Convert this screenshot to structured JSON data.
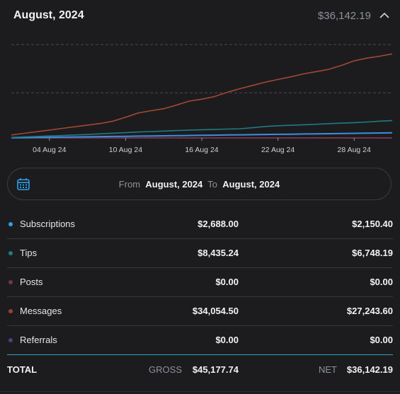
{
  "header": {
    "title": "August, 2024",
    "total": "$36,142.19"
  },
  "range": {
    "from_label": "From",
    "from_value": "August, 2024",
    "to_label": "To",
    "to_value": "August, 2024"
  },
  "rows": [
    {
      "label": "Subscriptions",
      "gross": "$2,688.00",
      "net": "$2,150.40",
      "color": "#2aa3e8"
    },
    {
      "label": "Tips",
      "gross": "$8,435.24",
      "net": "$6,748.19",
      "color": "#1f7c82"
    },
    {
      "label": "Posts",
      "gross": "$0.00",
      "net": "$0.00",
      "color": "#7a3346"
    },
    {
      "label": "Messages",
      "gross": "$34,054.50",
      "net": "$27,243.60",
      "color": "#9c4138"
    },
    {
      "label": "Referrals",
      "gross": "$0.00",
      "net": "$0.00",
      "color": "#4a4379"
    }
  ],
  "totals": {
    "label": "TOTAL",
    "gross_label": "GROSS",
    "gross_value": "$45,177.74",
    "net_label": "NET",
    "net_value": "$36,142.19"
  },
  "chart_data": {
    "type": "line",
    "x": [
      1,
      2,
      3,
      4,
      5,
      6,
      7,
      8,
      9,
      10,
      11,
      12,
      13,
      14,
      15,
      16,
      17,
      18,
      19,
      20,
      21,
      22,
      23,
      24,
      25,
      26,
      27,
      28,
      29,
      30,
      31
    ],
    "x_tick_labels": [
      "04 Aug 24",
      "10 Aug 24",
      "16 Aug 24",
      "22 Aug 24",
      "28 Aug 24"
    ],
    "x_tick_positions": [
      4,
      10,
      16,
      22,
      28
    ],
    "ylim": [
      0,
      30000
    ],
    "grid": "horizontal dashed",
    "series": [
      {
        "color": "#a04a35",
        "values": [
          900,
          1400,
          1900,
          2400,
          2900,
          3400,
          3900,
          4400,
          5100,
          6300,
          7600,
          8300,
          8900,
          10000,
          11200,
          11800,
          12600,
          13900,
          15000,
          16000,
          17000,
          17800,
          18600,
          19500,
          20200,
          20900,
          22100,
          23500,
          24300,
          24900,
          25600
        ]
      },
      {
        "color": "#1f7c82",
        "values": [
          150,
          300,
          450,
          600,
          750,
          900,
          1050,
          1250,
          1450,
          1600,
          1800,
          1950,
          2100,
          2250,
          2400,
          2500,
          2600,
          2700,
          2800,
          3100,
          3500,
          3700,
          3850,
          4000,
          4150,
          4350,
          4500,
          4650,
          4850,
          5100,
          5300
        ]
      },
      {
        "color": "#3a8fe0",
        "values": [
          50,
          100,
          150,
          200,
          250,
          300,
          350,
          400,
          450,
          500,
          550,
          600,
          650,
          700,
          750,
          800,
          850,
          900,
          950,
          1000,
          1050,
          1100,
          1150,
          1200,
          1250,
          1300,
          1350,
          1400,
          1450,
          1500,
          1550
        ]
      },
      {
        "color": "#7a3346",
        "values": [
          0,
          0,
          0,
          0,
          0,
          0,
          0,
          0,
          0,
          0,
          0,
          0,
          0,
          0,
          0,
          0,
          0,
          0,
          0,
          0,
          0,
          0,
          0,
          0,
          0,
          0,
          0,
          0,
          0,
          0,
          0
        ]
      },
      {
        "color": "#4a4379",
        "values": [
          0,
          0,
          0,
          0,
          0,
          0,
          0,
          0,
          0,
          0,
          0,
          0,
          0,
          0,
          0,
          0,
          0,
          0,
          0,
          0,
          0,
          0,
          0,
          0,
          0,
          0,
          0,
          0,
          0,
          0,
          0
        ]
      }
    ]
  }
}
